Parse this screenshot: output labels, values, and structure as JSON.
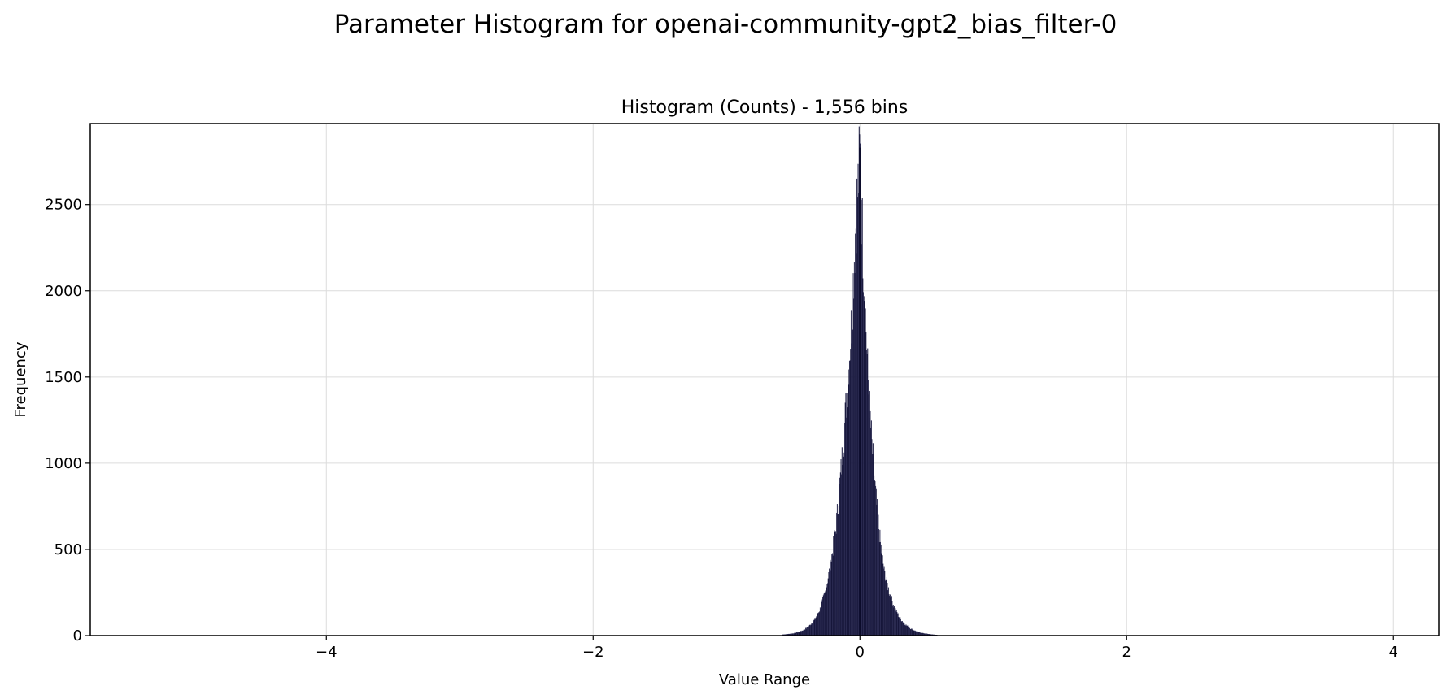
{
  "figure": {
    "suptitle": "Parameter Histogram for openai-community-gpt2_bias_filter-0"
  },
  "chart_data": {
    "type": "bar",
    "title": "Histogram (Counts) - 1,556 bins",
    "xlabel": "Value Range",
    "ylabel": "Frequency",
    "xlim": [
      -5.77,
      4.34
    ],
    "ylim": [
      0,
      2970
    ],
    "xticks": [
      -4,
      -2,
      0,
      2,
      4
    ],
    "xtick_labels": [
      "−4",
      "−2",
      "0",
      "2",
      "4"
    ],
    "yticks": [
      0,
      500,
      1000,
      1500,
      2000,
      2500
    ],
    "ytick_labels": [
      "0",
      "500",
      "1000",
      "1500",
      "2000",
      "2500"
    ],
    "grid": true,
    "bar_color": "#0b0b2a",
    "edge_color": "#2a2a55",
    "bins": {
      "x": [
        -0.58,
        -0.54,
        -0.5,
        -0.46,
        -0.42,
        -0.38,
        -0.34,
        -0.3,
        -0.26,
        -0.22,
        -0.18,
        -0.15,
        -0.12,
        -0.09,
        -0.06,
        -0.04,
        -0.02,
        -0.01,
        0.0,
        0.01,
        0.02,
        0.04,
        0.06,
        0.09,
        0.12,
        0.15,
        0.18,
        0.22,
        0.26,
        0.3,
        0.34,
        0.38,
        0.42,
        0.46,
        0.5,
        0.54,
        0.58
      ],
      "counts": [
        5,
        8,
        12,
        20,
        32,
        55,
        90,
        150,
        250,
        410,
        620,
        880,
        1150,
        1500,
        1850,
        2250,
        2550,
        2650,
        2820,
        2600,
        2300,
        1900,
        1500,
        1100,
        800,
        560,
        380,
        250,
        160,
        100,
        65,
        40,
        25,
        15,
        10,
        6,
        3
      ]
    }
  }
}
